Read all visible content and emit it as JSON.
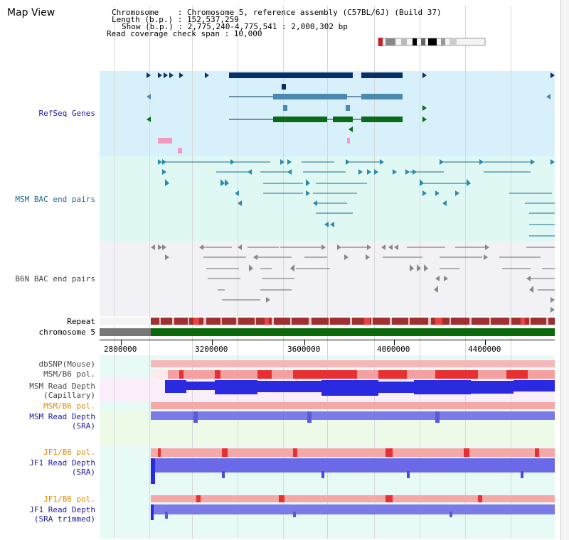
{
  "view_title": "Map View",
  "header": {
    "chromosome_line": "Chromosome    : Chromosome 5, reference assembly (C57BL/6J) (Build 37)",
    "length_line": "Length (b.p.) : 152,537,259",
    "show_line": "Show (b.p.) : 2,775,240-4,775,541 : 2,000,302 bp",
    "coverage_line": "Read coverage check span : 10,000"
  },
  "tracks": {
    "refseq": "RefSeq Genes",
    "msm_bac": "MSM BAC end pairs",
    "b6n_bac": "B6N BAC end pairs",
    "repeat": "Repeat",
    "chromosome": "chromosome 5",
    "dbsnp": "dbSNP(Mouse)",
    "msm_b6_pol_1": "MSM/B6 pol.",
    "msm_depth_cap_1": "MSM Read Depth",
    "msm_depth_cap_2": "(Capillary)",
    "msm_b6_pol_2": "MSM/B6 pol.",
    "msm_depth_sra_1": "MSM Read Depth",
    "msm_depth_sra_2": "(SRA)",
    "jf1_pol_1": "JF1/B6 pol.",
    "jf1_depth_1": "JF1 Read Depth",
    "jf1_depth_2": "(SRA)",
    "jf1_pol_2": "JF1/B6 pol.",
    "jf1_trim_1": "JF1 Read Depth",
    "jf1_trim_2": "(SRA trimmed)"
  },
  "axis": {
    "ticks": [
      "2800000",
      "3200000",
      "3600000",
      "4000000",
      "4400000"
    ]
  },
  "colors": {
    "refseq_bg": "#d8f0fa",
    "bac_bg": "#e0f8f4",
    "b6n_bg": "#f2f2f6",
    "gene_dark": "#0a2f66",
    "gene_mid": "#4a8ab0",
    "gene_green": "#0a6a1a",
    "bac_line": "#1a6a8a",
    "b6n_line": "#666666",
    "repeat_red": "#e03030",
    "chrom_green": "#0a6a0a",
    "pol_red": "#f04040",
    "depth_blue": "#2a2ae0",
    "depth_light": "#7a7ae8",
    "label_blue": "#1a1aa0",
    "label_orange": "#e08a00"
  },
  "icons": {
    "scrollbar": "vertical-scrollbar"
  }
}
